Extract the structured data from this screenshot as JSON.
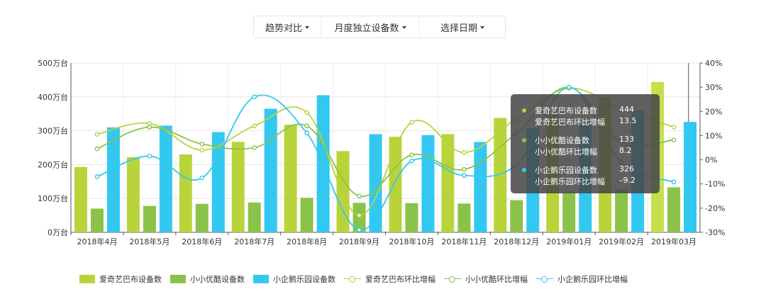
{
  "toolbar": {
    "trend_label": "趋势对比",
    "metric_label": "月度独立设备数",
    "date_label": "选择日期"
  },
  "chart_data": {
    "type": "bar",
    "categories": [
      "2018年4月",
      "2018年5月",
      "2018年6月",
      "2018年7月",
      "2018年8月",
      "2018年9月",
      "2018年10月",
      "2018年11月",
      "2018年12月",
      "2019年01月",
      "2019年02月",
      "2019年03月"
    ],
    "y_left": {
      "ticks": [
        "0万台",
        "100万台",
        "200万台",
        "300万台",
        "400万台",
        "500万台"
      ],
      "ylim": [
        0,
        500
      ]
    },
    "y_right": {
      "ticks": [
        "-30%",
        "-20%",
        "-10%",
        "0%",
        "10%",
        "20%",
        "30%",
        "40%"
      ],
      "ylim": [
        -30,
        40
      ]
    },
    "bar_series": [
      {
        "name": "爱奇艺巴布设备数",
        "color": "#b8d43a",
        "values": [
          193,
          222,
          230,
          267,
          318,
          240,
          282,
          290,
          338,
          348,
          398,
          444
        ]
      },
      {
        "name": "小小优酷设备数",
        "color": "#8bc34a",
        "values": [
          70,
          78,
          84,
          88,
          102,
          87,
          86,
          85,
          95,
          120,
          128,
          133
        ]
      },
      {
        "name": "小企鹅乐园设备数",
        "color": "#33c8f0",
        "values": [
          310,
          315,
          296,
          365,
          405,
          290,
          287,
          267,
          308,
          318,
          360,
          326
        ]
      }
    ],
    "line_series": [
      {
        "name": "爱奇艺巴布环比增幅",
        "color": "#b8d43a",
        "values": [
          10.5,
          15.0,
          4.0,
          14.0,
          19.5,
          -23.0,
          15.5,
          3.0,
          17.0,
          29.5,
          21.0,
          13.5
        ]
      },
      {
        "name": "小小优酷环比增幅",
        "color": "#8bc34a",
        "values": [
          4.5,
          13.5,
          6.5,
          5.0,
          14.0,
          -15.0,
          2.0,
          -4.0,
          11.0,
          30.0,
          7.0,
          8.2
        ]
      },
      {
        "name": "小企鹅乐园环比增幅",
        "color": "#33c8f0",
        "values": [
          -7.0,
          1.5,
          -7.5,
          26.0,
          11.0,
          -29.0,
          -0.5,
          -6.5,
          -2.0,
          30.0,
          -1.0,
          -9.2
        ]
      }
    ],
    "highlight_category": "2019年03月",
    "tooltip": {
      "rows": [
        {
          "label": "爱奇艺巴布设备数",
          "value": "444",
          "color": "#b8d43a"
        },
        {
          "label": "爱奇艺巴布环比增幅",
          "value": "13.5"
        },
        {
          "label": "小小优酷设备数",
          "value": "133",
          "color": "#8bc34a"
        },
        {
          "label": "小小优酷环比增幅",
          "value": "8.2"
        },
        {
          "label": "小企鹅乐园设备数",
          "value": "326",
          "color": "#33c8f0"
        },
        {
          "label": "小企鹅乐园环比增幅",
          "value": "–9.2"
        }
      ]
    },
    "legend": {
      "position": "bottom"
    },
    "grid": true
  }
}
